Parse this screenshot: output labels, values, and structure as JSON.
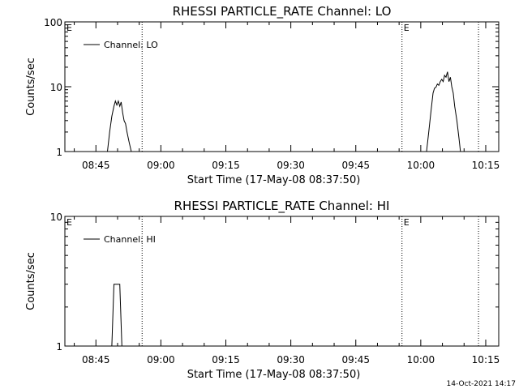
{
  "footer_timestamp": "14-Oct-2021 14:17",
  "chart_data": [
    {
      "type": "line",
      "title": "RHESSI PARTICLE_RATE Channel: LO",
      "xlabel": "Start Time (17-May-08 08:37:50)",
      "ylabel": "Counts/sec",
      "y_scale": "log",
      "ylim": [
        1,
        100
      ],
      "y_ticks": [
        1,
        10,
        100
      ],
      "y_tick_labels": [
        "1",
        "10",
        "100"
      ],
      "xlim": [
        "08:37:50",
        "10:18:00"
      ],
      "x_ticks": [
        "08:45",
        "09:00",
        "09:15",
        "09:30",
        "09:45",
        "10:00",
        "10:15"
      ],
      "legend": "top-left",
      "eclipse_marker": "E",
      "event_lines": [
        "08:55:40",
        "09:55:40",
        "10:13:20"
      ],
      "event_label_times": [
        "08:37:50",
        "09:55:40"
      ],
      "series": [
        {
          "name": "Channel: LO",
          "x": [
            "08:47:40",
            "08:48:10",
            "08:48:40",
            "08:49:10",
            "08:49:30",
            "08:49:50",
            "08:50:10",
            "08:50:30",
            "08:50:50",
            "08:51:10",
            "08:51:30",
            "08:51:50",
            "08:52:10",
            "08:52:40",
            "08:53:10",
            "10:01:20",
            "10:01:50",
            "10:02:20",
            "10:02:50",
            "10:03:10",
            "10:03:30",
            "10:03:50",
            "10:04:10",
            "10:04:30",
            "10:04:50",
            "10:05:10",
            "10:05:30",
            "10:05:50",
            "10:06:10",
            "10:06:30",
            "10:06:50",
            "10:07:10",
            "10:07:30",
            "10:07:50",
            "10:08:20",
            "10:08:50",
            "10:09:10"
          ],
          "y": [
            1.0,
            2.0,
            3.5,
            5.0,
            6.0,
            5.2,
            6.0,
            5.0,
            5.8,
            4.0,
            3.0,
            2.7,
            2.0,
            1.4,
            1.0,
            1.0,
            2.0,
            4.0,
            8.0,
            9.5,
            9.8,
            11,
            10.5,
            12,
            13,
            12,
            15,
            14,
            17,
            12,
            14,
            10,
            8,
            5,
            3,
            1.6,
            1.0
          ]
        }
      ]
    },
    {
      "type": "line",
      "title": "RHESSI PARTICLE_RATE Channel: HI",
      "xlabel": "Start Time (17-May-08 08:37:50)",
      "ylabel": "Counts/sec",
      "y_scale": "log",
      "ylim": [
        1,
        10
      ],
      "y_ticks": [
        1,
        10
      ],
      "y_tick_labels": [
        "1",
        "10"
      ],
      "xlim": [
        "08:37:50",
        "10:18:00"
      ],
      "x_ticks": [
        "08:45",
        "09:00",
        "09:15",
        "09:30",
        "09:45",
        "10:00",
        "10:15"
      ],
      "legend": "top-left",
      "eclipse_marker": "E",
      "event_lines": [
        "08:55:40",
        "09:55:40",
        "10:13:20"
      ],
      "event_label_times": [
        "08:37:50",
        "09:55:40"
      ],
      "series": [
        {
          "name": "Channel: HI",
          "x": [
            "08:48:40",
            "08:49:10",
            "08:50:30",
            "08:51:00"
          ],
          "y": [
            1.0,
            3.0,
            3.0,
            1.0
          ]
        }
      ]
    }
  ]
}
